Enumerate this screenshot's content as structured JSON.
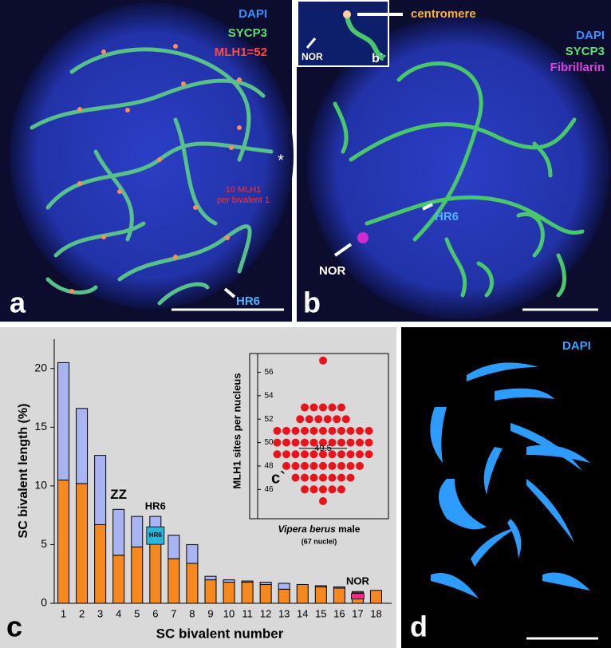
{
  "panels": {
    "a": {
      "letter": "a",
      "labels": [
        "DAPI",
        "SYCP3",
        "MLH1=52",
        "*",
        "10 MLH1",
        "per bivalent 1",
        "HR6"
      ]
    },
    "b": {
      "letter": "b",
      "labels": [
        "centromere",
        "NOR",
        "b`",
        "DAPI",
        "SYCP3",
        "Fibrillarin",
        "HR6",
        "NOR"
      ]
    },
    "c": {
      "letter": "c"
    },
    "d": {
      "letter": "d",
      "labels": [
        "DAPI"
      ]
    }
  },
  "chart_data": [
    {
      "type": "bar",
      "stacked": true,
      "xlabel": "SC bivalent number",
      "ylabel": "SC bivalent length (%)",
      "categories": [
        "1",
        "2",
        "3",
        "4",
        "5",
        "6",
        "7",
        "8",
        "9",
        "10",
        "11",
        "12",
        "13",
        "14",
        "15",
        "16",
        "17",
        "18"
      ],
      "series": [
        {
          "color": "#f5891f",
          "values": [
            10.5,
            10.2,
            6.7,
            4.1,
            4.8,
            6.4,
            3.8,
            3.4,
            2.0,
            1.8,
            1.8,
            1.6,
            1.2,
            1.6,
            1.4,
            1.3,
            0.9,
            1.1
          ]
        },
        {
          "color": "#a9b5f2",
          "values": [
            10.0,
            6.4,
            5.9,
            3.9,
            2.6,
            1.0,
            2.0,
            1.6,
            0.3,
            0.2,
            0.1,
            0.2,
            0.5,
            0.0,
            0.1,
            0.1,
            0.1,
            0.0
          ]
        }
      ],
      "ylim": [
        0,
        22.5
      ],
      "yticks": [
        0,
        5,
        10,
        15,
        20
      ],
      "annotations": [
        {
          "text": "ZZ",
          "x": "4"
        },
        {
          "text": "HR6",
          "x": "6"
        },
        {
          "text": "NOR",
          "x": "17"
        }
      ],
      "marked_bivalents": [
        {
          "x": "6",
          "label": "HR6",
          "color": "#29b6d8"
        },
        {
          "x": "17",
          "color": "#e8308a"
        }
      ]
    },
    {
      "type": "dotplot",
      "color": "#e8141c",
      "ylabel": "MLH1 sites per nucleus",
      "label": "c`",
      "caption": "Vipera berus",
      "caption_rest": "male",
      "note": "(67 nuclei)",
      "values": [
        45,
        46,
        46,
        46,
        46,
        46,
        47,
        47,
        47,
        47,
        47,
        47,
        47,
        48,
        48,
        48,
        48,
        48,
        48,
        48,
        48,
        48,
        49,
        49,
        49,
        49,
        49,
        49,
        49,
        49,
        49,
        49,
        49,
        50,
        50,
        50,
        50,
        50,
        50,
        50,
        50,
        50,
        50,
        50,
        51,
        51,
        51,
        51,
        51,
        51,
        51,
        51,
        51,
        51,
        51,
        52,
        52,
        52,
        52,
        52,
        52,
        53,
        53,
        53,
        53,
        53,
        57
      ],
      "mean": 49.5,
      "ylim": [
        43.5,
        57.6
      ],
      "yticks": [
        46,
        48,
        50,
        52,
        54,
        56
      ]
    }
  ]
}
